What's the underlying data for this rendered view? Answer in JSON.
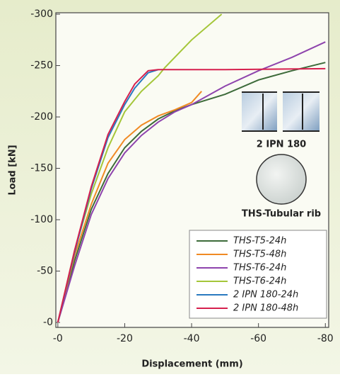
{
  "chart_data": {
    "type": "line",
    "xlabel": "Displacement (mm)",
    "ylabel": "Load [kN]",
    "xlim": [
      0.6,
      -81
    ],
    "ylim": [
      4.8,
      -301.4
    ],
    "xticks": [
      {
        "value": 0,
        "label": "-0"
      },
      -20,
      -40,
      -60,
      -80
    ],
    "yticks": [
      {
        "value": 0,
        "label": "-0"
      },
      -50,
      -100,
      -150,
      -200,
      -250,
      -300
    ],
    "legend": "lower right",
    "annotations": [
      "2 IPN 180",
      "THS-Tubular rib"
    ],
    "series": [
      {
        "name": "THS-T5-24h",
        "color": "#3d6b3a",
        "x": [
          0,
          -5,
          -10,
          -15,
          -20,
          -25,
          -30,
          -35,
          -40,
          -50,
          -60,
          -70,
          -80
        ],
        "values": [
          0,
          -60,
          -110,
          -145,
          -170,
          -186,
          -198,
          -206,
          -212,
          -222,
          -236,
          -245,
          -253
        ]
      },
      {
        "name": "THS-T5-48h",
        "color": "#f08a24",
        "x": [
          0,
          -5,
          -10,
          -15,
          -20,
          -25,
          -30,
          -35,
          -40,
          -43
        ],
        "values": [
          0,
          -65,
          -115,
          -155,
          -178,
          -192,
          -201,
          -207,
          -214,
          -225
        ]
      },
      {
        "name": "THS-T6-24h",
        "color": "#8e44ad",
        "x": [
          0,
          -5,
          -10,
          -15,
          -20,
          -25,
          -30,
          -35,
          -40,
          -50,
          -60,
          -70,
          -80
        ],
        "values": [
          0,
          -55,
          -105,
          -140,
          -165,
          -182,
          -195,
          -205,
          -212,
          -230,
          -245,
          -258,
          -273
        ]
      },
      {
        "name": "THS-T6-24h",
        "color": "#a4c639",
        "x": [
          0,
          -5,
          -10,
          -15,
          -20,
          -25,
          -30,
          -32,
          -40,
          -49
        ],
        "values": [
          0,
          -70,
          -125,
          -170,
          -205,
          -225,
          -240,
          -248,
          -275,
          -300
        ]
      },
      {
        "name": "2 IPN 180-24h",
        "color": "#2a7ac0",
        "x": [
          0,
          -5,
          -10,
          -15,
          -20,
          -23,
          -27,
          -30
        ],
        "values": [
          0,
          -68,
          -130,
          -180,
          -212,
          -228,
          -243,
          -246
        ]
      },
      {
        "name": "2 IPN 180-48h",
        "color": "#d6204e",
        "x": [
          0,
          -5,
          -10,
          -15,
          -20,
          -23,
          -27,
          -30,
          -50,
          -80
        ],
        "values": [
          0,
          -70,
          -132,
          -183,
          -215,
          -232,
          -245,
          -246,
          -246,
          -247
        ]
      }
    ]
  }
}
